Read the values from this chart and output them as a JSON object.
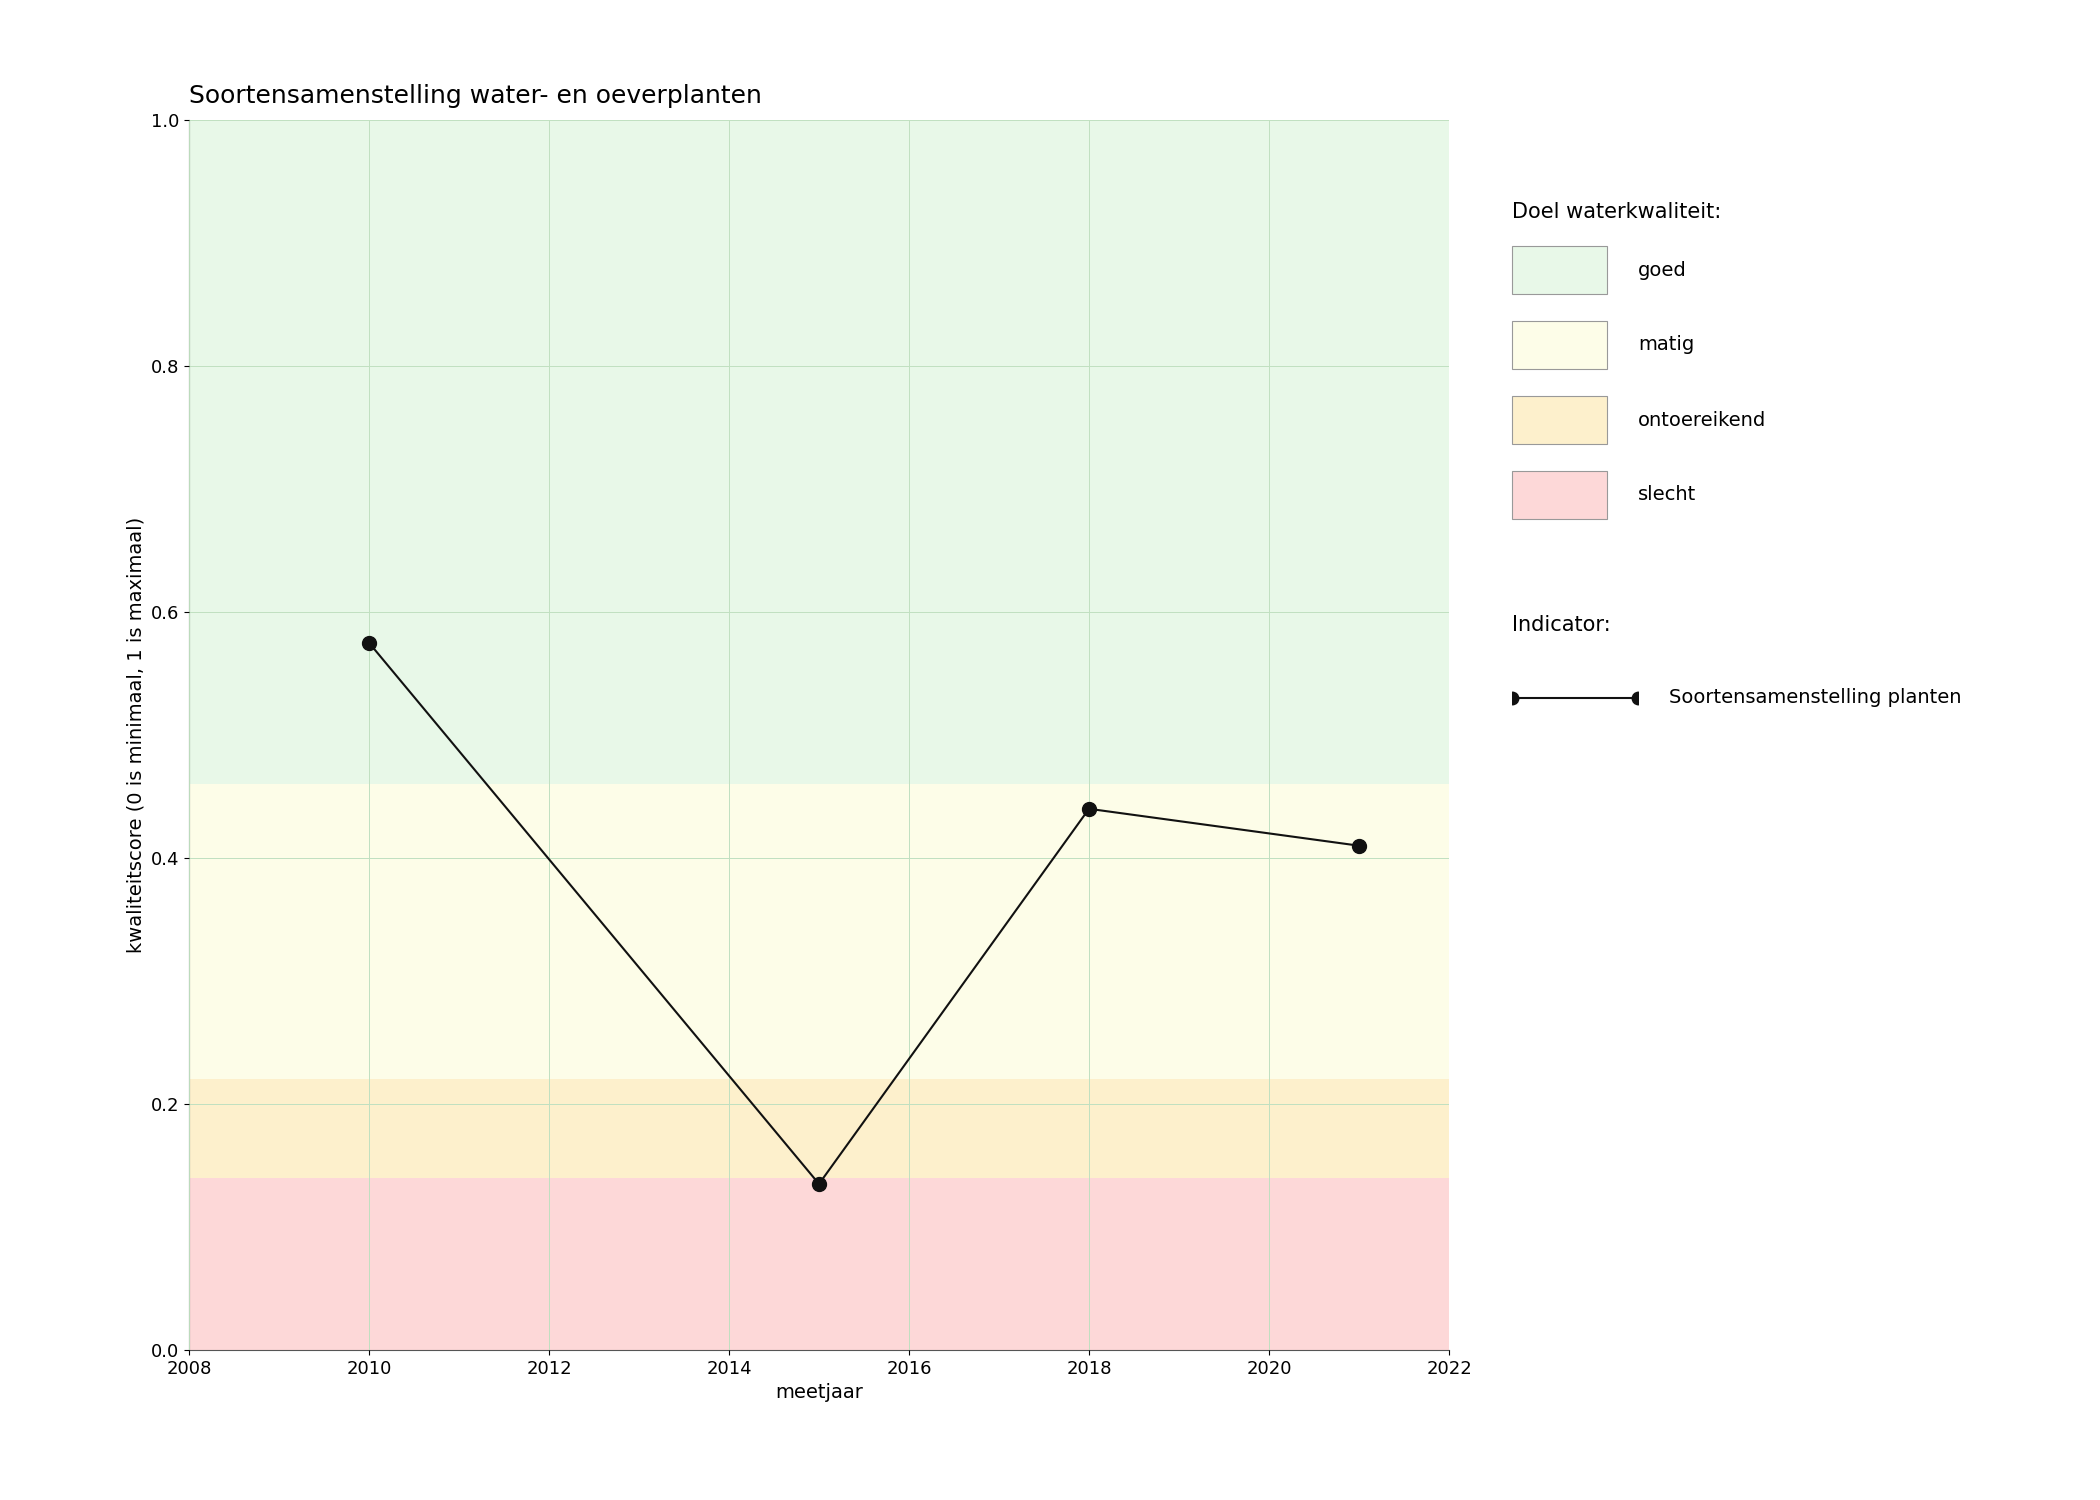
{
  "title": "Soortensamenstelling water- en oeverplanten",
  "xlabel": "meetjaar",
  "ylabel": "kwaliteitscore (0 is minimaal, 1 is maximaal)",
  "xlim": [
    2008,
    2022
  ],
  "ylim": [
    0.0,
    1.0
  ],
  "xticks": [
    2008,
    2010,
    2012,
    2014,
    2016,
    2018,
    2020,
    2022
  ],
  "yticks": [
    0.0,
    0.2,
    0.4,
    0.6,
    0.8,
    1.0
  ],
  "x_data": [
    2010,
    2015,
    2018,
    2021
  ],
  "y_data": [
    0.575,
    0.135,
    0.44,
    0.41
  ],
  "bg_bands": [
    {
      "label": "goed",
      "ymin": 0.46,
      "ymax": 1.0,
      "color": "#e8f8e8"
    },
    {
      "label": "matig",
      "ymin": 0.22,
      "ymax": 0.46,
      "color": "#fdfde8"
    },
    {
      "label": "ontoereikend",
      "ymin": 0.14,
      "ymax": 0.22,
      "color": "#fdf0cc"
    },
    {
      "label": "slecht",
      "ymin": 0.0,
      "ymax": 0.14,
      "color": "#fdd8d8"
    }
  ],
  "line_color": "#111111",
  "marker_color": "#111111",
  "marker_size": 10,
  "line_width": 1.5,
  "grid_color": "#c8e8c8",
  "legend_title_doel": "Doel waterkwaliteit:",
  "legend_title_indicator": "Indicator:",
  "legend_indicator_label": "Soortensamenstelling planten",
  "title_fontsize": 18,
  "label_fontsize": 14,
  "tick_fontsize": 13,
  "legend_fontsize": 14,
  "legend_title_fontsize": 15
}
